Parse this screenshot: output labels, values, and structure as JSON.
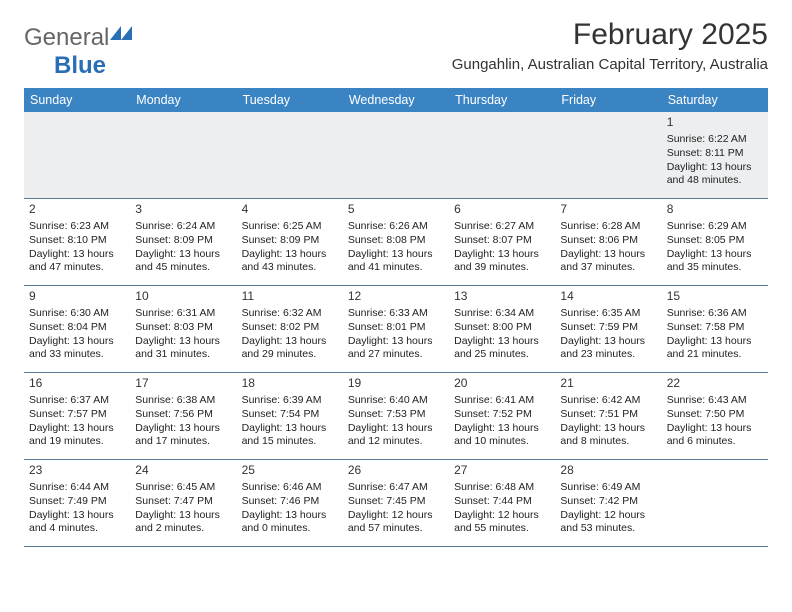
{
  "logo": {
    "text1": "General",
    "text2": "Blue"
  },
  "title": "February 2025",
  "subtitle": "Gungahlin, Australian Capital Territory, Australia",
  "day_headers": [
    "Sunday",
    "Monday",
    "Tuesday",
    "Wednesday",
    "Thursday",
    "Friday",
    "Saturday"
  ],
  "colors": {
    "header_bg": "#3b84c4",
    "header_text": "#ffffff",
    "border": "#5a7a99",
    "first_row_bg": "#eceeef",
    "logo_blue": "#2a6fb5",
    "logo_gray": "#666666"
  },
  "weeks": [
    [
      null,
      null,
      null,
      null,
      null,
      null,
      {
        "n": "1",
        "sunrise": "Sunrise: 6:22 AM",
        "sunset": "Sunset: 8:11 PM",
        "daylight": "Daylight: 13 hours and 48 minutes."
      }
    ],
    [
      {
        "n": "2",
        "sunrise": "Sunrise: 6:23 AM",
        "sunset": "Sunset: 8:10 PM",
        "daylight": "Daylight: 13 hours and 47 minutes."
      },
      {
        "n": "3",
        "sunrise": "Sunrise: 6:24 AM",
        "sunset": "Sunset: 8:09 PM",
        "daylight": "Daylight: 13 hours and 45 minutes."
      },
      {
        "n": "4",
        "sunrise": "Sunrise: 6:25 AM",
        "sunset": "Sunset: 8:09 PM",
        "daylight": "Daylight: 13 hours and 43 minutes."
      },
      {
        "n": "5",
        "sunrise": "Sunrise: 6:26 AM",
        "sunset": "Sunset: 8:08 PM",
        "daylight": "Daylight: 13 hours and 41 minutes."
      },
      {
        "n": "6",
        "sunrise": "Sunrise: 6:27 AM",
        "sunset": "Sunset: 8:07 PM",
        "daylight": "Daylight: 13 hours and 39 minutes."
      },
      {
        "n": "7",
        "sunrise": "Sunrise: 6:28 AM",
        "sunset": "Sunset: 8:06 PM",
        "daylight": "Daylight: 13 hours and 37 minutes."
      },
      {
        "n": "8",
        "sunrise": "Sunrise: 6:29 AM",
        "sunset": "Sunset: 8:05 PM",
        "daylight": "Daylight: 13 hours and 35 minutes."
      }
    ],
    [
      {
        "n": "9",
        "sunrise": "Sunrise: 6:30 AM",
        "sunset": "Sunset: 8:04 PM",
        "daylight": "Daylight: 13 hours and 33 minutes."
      },
      {
        "n": "10",
        "sunrise": "Sunrise: 6:31 AM",
        "sunset": "Sunset: 8:03 PM",
        "daylight": "Daylight: 13 hours and 31 minutes."
      },
      {
        "n": "11",
        "sunrise": "Sunrise: 6:32 AM",
        "sunset": "Sunset: 8:02 PM",
        "daylight": "Daylight: 13 hours and 29 minutes."
      },
      {
        "n": "12",
        "sunrise": "Sunrise: 6:33 AM",
        "sunset": "Sunset: 8:01 PM",
        "daylight": "Daylight: 13 hours and 27 minutes."
      },
      {
        "n": "13",
        "sunrise": "Sunrise: 6:34 AM",
        "sunset": "Sunset: 8:00 PM",
        "daylight": "Daylight: 13 hours and 25 minutes."
      },
      {
        "n": "14",
        "sunrise": "Sunrise: 6:35 AM",
        "sunset": "Sunset: 7:59 PM",
        "daylight": "Daylight: 13 hours and 23 minutes."
      },
      {
        "n": "15",
        "sunrise": "Sunrise: 6:36 AM",
        "sunset": "Sunset: 7:58 PM",
        "daylight": "Daylight: 13 hours and 21 minutes."
      }
    ],
    [
      {
        "n": "16",
        "sunrise": "Sunrise: 6:37 AM",
        "sunset": "Sunset: 7:57 PM",
        "daylight": "Daylight: 13 hours and 19 minutes."
      },
      {
        "n": "17",
        "sunrise": "Sunrise: 6:38 AM",
        "sunset": "Sunset: 7:56 PM",
        "daylight": "Daylight: 13 hours and 17 minutes."
      },
      {
        "n": "18",
        "sunrise": "Sunrise: 6:39 AM",
        "sunset": "Sunset: 7:54 PM",
        "daylight": "Daylight: 13 hours and 15 minutes."
      },
      {
        "n": "19",
        "sunrise": "Sunrise: 6:40 AM",
        "sunset": "Sunset: 7:53 PM",
        "daylight": "Daylight: 13 hours and 12 minutes."
      },
      {
        "n": "20",
        "sunrise": "Sunrise: 6:41 AM",
        "sunset": "Sunset: 7:52 PM",
        "daylight": "Daylight: 13 hours and 10 minutes."
      },
      {
        "n": "21",
        "sunrise": "Sunrise: 6:42 AM",
        "sunset": "Sunset: 7:51 PM",
        "daylight": "Daylight: 13 hours and 8 minutes."
      },
      {
        "n": "22",
        "sunrise": "Sunrise: 6:43 AM",
        "sunset": "Sunset: 7:50 PM",
        "daylight": "Daylight: 13 hours and 6 minutes."
      }
    ],
    [
      {
        "n": "23",
        "sunrise": "Sunrise: 6:44 AM",
        "sunset": "Sunset: 7:49 PM",
        "daylight": "Daylight: 13 hours and 4 minutes."
      },
      {
        "n": "24",
        "sunrise": "Sunrise: 6:45 AM",
        "sunset": "Sunset: 7:47 PM",
        "daylight": "Daylight: 13 hours and 2 minutes."
      },
      {
        "n": "25",
        "sunrise": "Sunrise: 6:46 AM",
        "sunset": "Sunset: 7:46 PM",
        "daylight": "Daylight: 13 hours and 0 minutes."
      },
      {
        "n": "26",
        "sunrise": "Sunrise: 6:47 AM",
        "sunset": "Sunset: 7:45 PM",
        "daylight": "Daylight: 12 hours and 57 minutes."
      },
      {
        "n": "27",
        "sunrise": "Sunrise: 6:48 AM",
        "sunset": "Sunset: 7:44 PM",
        "daylight": "Daylight: 12 hours and 55 minutes."
      },
      {
        "n": "28",
        "sunrise": "Sunrise: 6:49 AM",
        "sunset": "Sunset: 7:42 PM",
        "daylight": "Daylight: 12 hours and 53 minutes."
      },
      null
    ]
  ]
}
